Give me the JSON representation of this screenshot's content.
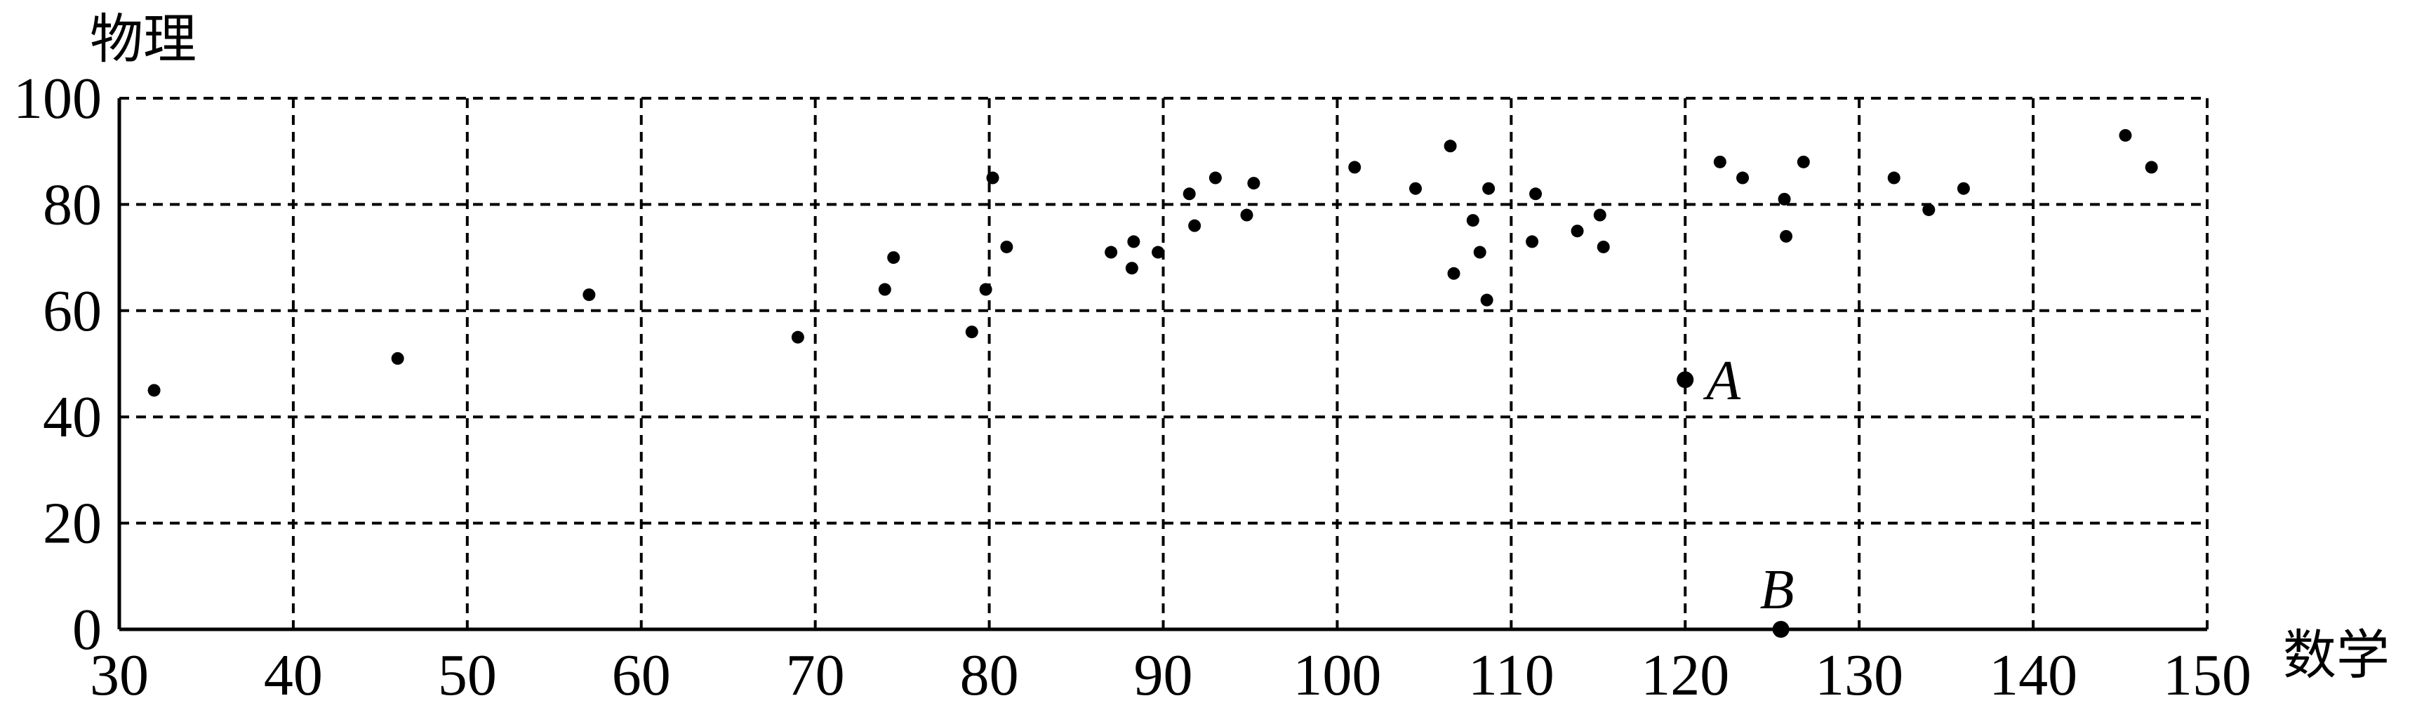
{
  "chart_data": {
    "type": "scatter",
    "title": "",
    "xlabel": "数学",
    "ylabel": "物理",
    "xlim": [
      30,
      150
    ],
    "ylim": [
      0,
      100
    ],
    "x_ticks": [
      30,
      40,
      50,
      60,
      70,
      80,
      90,
      100,
      110,
      120,
      130,
      140,
      150
    ],
    "y_ticks": [
      0,
      20,
      40,
      60,
      80,
      100
    ],
    "grid": true,
    "grid_style": "dashed",
    "points": [
      {
        "x": 32,
        "y": 45
      },
      {
        "x": 46,
        "y": 51
      },
      {
        "x": 57,
        "y": 63
      },
      {
        "x": 69,
        "y": 55
      },
      {
        "x": 74,
        "y": 64
      },
      {
        "x": 74.5,
        "y": 70
      },
      {
        "x": 79,
        "y": 56
      },
      {
        "x": 79.8,
        "y": 64
      },
      {
        "x": 80.2,
        "y": 85
      },
      {
        "x": 81,
        "y": 72
      },
      {
        "x": 87,
        "y": 71
      },
      {
        "x": 88.2,
        "y": 68
      },
      {
        "x": 88.3,
        "y": 73
      },
      {
        "x": 89.7,
        "y": 71
      },
      {
        "x": 91.5,
        "y": 82
      },
      {
        "x": 91.8,
        "y": 76
      },
      {
        "x": 93,
        "y": 85
      },
      {
        "x": 94.8,
        "y": 78
      },
      {
        "x": 95.2,
        "y": 84
      },
      {
        "x": 101,
        "y": 87
      },
      {
        "x": 104.5,
        "y": 83
      },
      {
        "x": 106.5,
        "y": 91
      },
      {
        "x": 106.7,
        "y": 67
      },
      {
        "x": 107.8,
        "y": 77
      },
      {
        "x": 108.2,
        "y": 71
      },
      {
        "x": 108.6,
        "y": 62
      },
      {
        "x": 108.7,
        "y": 83
      },
      {
        "x": 111.2,
        "y": 73
      },
      {
        "x": 111.4,
        "y": 82
      },
      {
        "x": 113.8,
        "y": 75
      },
      {
        "x": 115.1,
        "y": 78
      },
      {
        "x": 115.3,
        "y": 72
      },
      {
        "x": 122,
        "y": 88
      },
      {
        "x": 123.3,
        "y": 85
      },
      {
        "x": 125.7,
        "y": 81
      },
      {
        "x": 125.8,
        "y": 74
      },
      {
        "x": 126.8,
        "y": 88
      },
      {
        "x": 132,
        "y": 85
      },
      {
        "x": 134,
        "y": 79
      },
      {
        "x": 136,
        "y": 83
      },
      {
        "x": 145.3,
        "y": 93
      },
      {
        "x": 146.8,
        "y": 87
      }
    ],
    "labeled_points": [
      {
        "label": "A",
        "x": 120,
        "y": 47
      },
      {
        "label": "B",
        "x": 125.5,
        "y": 0
      }
    ]
  }
}
